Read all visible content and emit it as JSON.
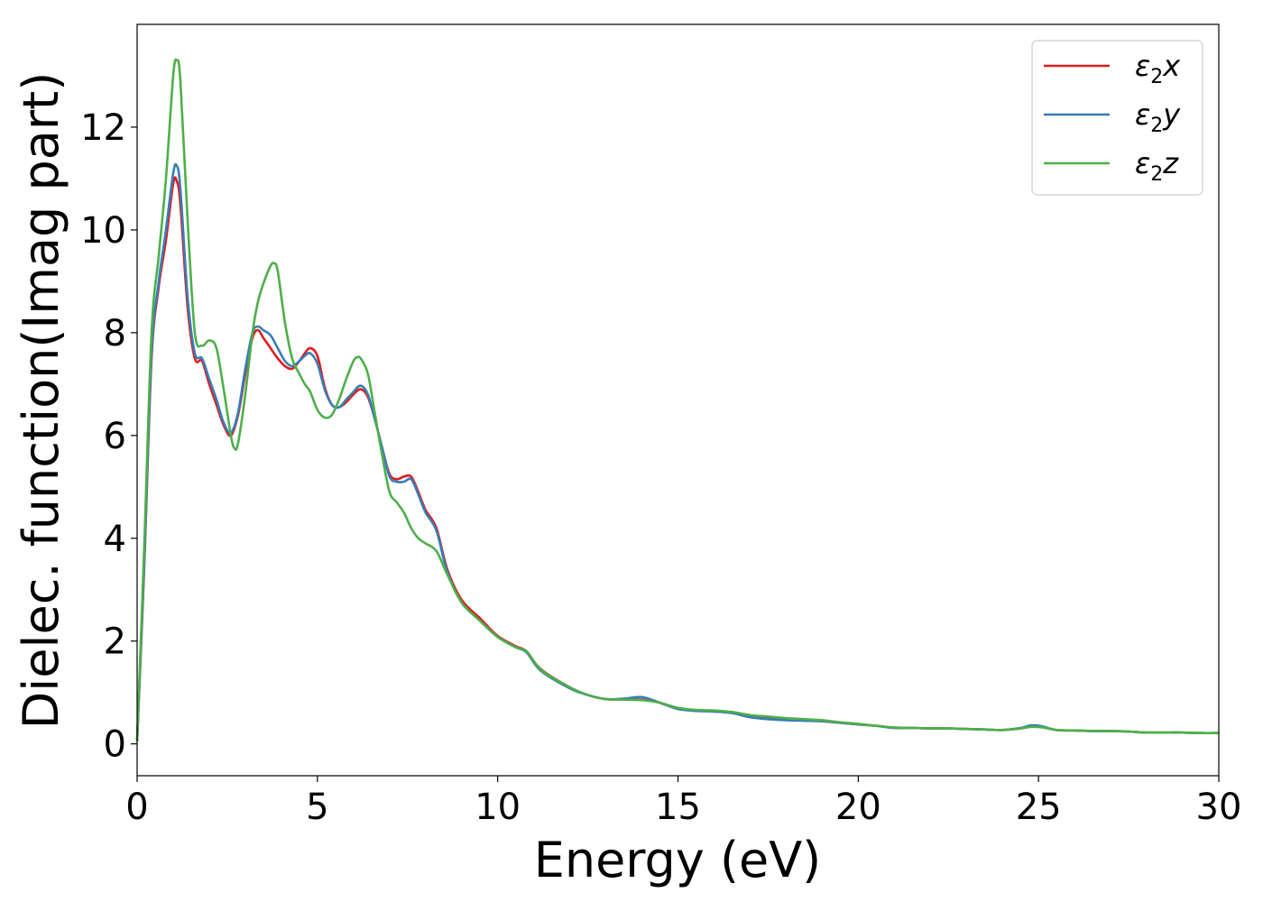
{
  "chart_data": {
    "type": "line",
    "title": "",
    "xlabel": "Energy (eV)",
    "ylabel": "Dielec. function(Imag part)",
    "xlim": [
      0,
      30
    ],
    "ylim": [
      -0.62,
      14.0
    ],
    "xticks": [
      0,
      5,
      10,
      15,
      20,
      25,
      30
    ],
    "yticks": [
      0,
      2,
      4,
      6,
      8,
      10,
      12
    ],
    "grid": false,
    "legend_position": "top-right",
    "series": [
      {
        "name": "ε2x",
        "name_base": "ε",
        "name_sub": "2",
        "name_suffix": "x",
        "color": "#e41a1c",
        "x": [
          0,
          0.2,
          0.4,
          0.6,
          0.8,
          1.0,
          1.1,
          1.2,
          1.4,
          1.6,
          1.8,
          2.0,
          2.2,
          2.4,
          2.6,
          2.8,
          3.0,
          3.2,
          3.35,
          3.5,
          3.7,
          3.9,
          4.1,
          4.3,
          4.5,
          4.65,
          4.8,
          5.0,
          5.2,
          5.4,
          5.6,
          5.8,
          6.0,
          6.2,
          6.4,
          6.6,
          6.8,
          7.0,
          7.2,
          7.4,
          7.6,
          7.8,
          8.0,
          8.3,
          8.6,
          9.0,
          9.5,
          10.0,
          10.5,
          10.8,
          11.2,
          12.0,
          12.5,
          13.0,
          13.5,
          14.0,
          14.5,
          15.0,
          15.5,
          16.0,
          16.5,
          17.0,
          17.5,
          18.0,
          18.5,
          19.0,
          19.5,
          20.0,
          20.5,
          21.0,
          21.5,
          22.0,
          22.5,
          23.0,
          23.5,
          24.0,
          24.5,
          24.8,
          25.1,
          25.5,
          26.0,
          26.5,
          27.0,
          27.5,
          28.0,
          28.5,
          29.0,
          29.5,
          30.0
        ],
        "y": [
          0.05,
          3.5,
          7.5,
          8.9,
          9.8,
          10.9,
          10.95,
          10.5,
          8.5,
          7.5,
          7.45,
          7.0,
          6.6,
          6.2,
          6.0,
          6.4,
          7.2,
          7.9,
          8.05,
          7.9,
          7.7,
          7.5,
          7.35,
          7.3,
          7.45,
          7.6,
          7.7,
          7.55,
          6.95,
          6.6,
          6.55,
          6.65,
          6.8,
          6.9,
          6.75,
          6.3,
          5.75,
          5.25,
          5.15,
          5.2,
          5.2,
          4.9,
          4.55,
          4.2,
          3.4,
          2.8,
          2.45,
          2.1,
          1.9,
          1.8,
          1.45,
          1.1,
          0.95,
          0.87,
          0.87,
          0.9,
          0.8,
          0.68,
          0.65,
          0.63,
          0.6,
          0.52,
          0.5,
          0.47,
          0.46,
          0.44,
          0.41,
          0.38,
          0.35,
          0.31,
          0.31,
          0.3,
          0.3,
          0.29,
          0.28,
          0.27,
          0.3,
          0.34,
          0.33,
          0.27,
          0.26,
          0.25,
          0.25,
          0.24,
          0.22,
          0.22,
          0.22,
          0.21,
          0.21
        ]
      },
      {
        "name": "ε2y",
        "name_base": "ε",
        "name_sub": "2",
        "name_suffix": "y",
        "color": "#377eb8",
        "x": [
          0,
          0.2,
          0.4,
          0.6,
          0.8,
          1.0,
          1.1,
          1.2,
          1.4,
          1.6,
          1.8,
          2.0,
          2.2,
          2.4,
          2.6,
          2.8,
          3.0,
          3.2,
          3.35,
          3.5,
          3.7,
          3.9,
          4.1,
          4.3,
          4.5,
          4.65,
          4.8,
          5.0,
          5.2,
          5.4,
          5.6,
          5.8,
          6.0,
          6.2,
          6.4,
          6.6,
          6.8,
          7.0,
          7.2,
          7.4,
          7.6,
          7.8,
          8.0,
          8.3,
          8.6,
          9.0,
          9.5,
          10.0,
          10.5,
          10.8,
          11.2,
          12.0,
          12.5,
          13.0,
          13.5,
          14.0,
          14.5,
          15.0,
          15.5,
          16.0,
          16.5,
          17.0,
          17.5,
          18.0,
          18.5,
          19.0,
          19.5,
          20.0,
          20.5,
          21.0,
          21.5,
          22.0,
          22.5,
          23.0,
          23.5,
          24.0,
          24.5,
          24.8,
          25.1,
          25.5,
          26.0,
          26.5,
          27.0,
          27.5,
          28.0,
          28.5,
          29.0,
          29.5,
          30.0
        ],
        "y": [
          0.05,
          3.6,
          7.6,
          9.0,
          10.0,
          11.1,
          11.25,
          10.8,
          8.7,
          7.6,
          7.5,
          7.1,
          6.7,
          6.25,
          6.05,
          6.45,
          7.3,
          8.0,
          8.12,
          8.05,
          7.95,
          7.7,
          7.45,
          7.35,
          7.45,
          7.55,
          7.6,
          7.4,
          6.9,
          6.6,
          6.55,
          6.7,
          6.85,
          6.97,
          6.8,
          6.3,
          5.75,
          5.2,
          5.1,
          5.1,
          5.15,
          4.85,
          4.5,
          4.15,
          3.35,
          2.75,
          2.4,
          2.08,
          1.88,
          1.78,
          1.42,
          1.08,
          0.95,
          0.87,
          0.88,
          0.91,
          0.8,
          0.68,
          0.64,
          0.63,
          0.6,
          0.52,
          0.48,
          0.46,
          0.45,
          0.44,
          0.41,
          0.38,
          0.35,
          0.31,
          0.31,
          0.3,
          0.3,
          0.29,
          0.28,
          0.27,
          0.31,
          0.36,
          0.34,
          0.27,
          0.26,
          0.25,
          0.25,
          0.24,
          0.22,
          0.22,
          0.22,
          0.21,
          0.21
        ]
      },
      {
        "name": "ε2z",
        "name_base": "ε",
        "name_sub": "2",
        "name_suffix": "z",
        "color": "#4daf4a",
        "x": [
          0,
          0.2,
          0.4,
          0.6,
          0.8,
          1.0,
          1.1,
          1.2,
          1.4,
          1.6,
          1.8,
          2.0,
          2.2,
          2.4,
          2.6,
          2.7,
          2.8,
          3.0,
          3.2,
          3.35,
          3.5,
          3.7,
          3.8,
          3.9,
          4.1,
          4.3,
          4.5,
          4.65,
          4.8,
          5.0,
          5.2,
          5.4,
          5.6,
          5.8,
          6.0,
          6.1,
          6.2,
          6.4,
          6.6,
          6.8,
          7.0,
          7.2,
          7.4,
          7.6,
          7.8,
          8.0,
          8.3,
          8.6,
          9.0,
          9.5,
          10.0,
          10.5,
          10.8,
          11.2,
          12.0,
          12.5,
          13.0,
          13.5,
          14.0,
          14.5,
          15.0,
          15.5,
          16.0,
          16.5,
          17.0,
          17.5,
          18.0,
          18.5,
          19.0,
          19.5,
          20.0,
          20.5,
          21.0,
          21.5,
          22.0,
          22.5,
          23.0,
          23.5,
          24.0,
          24.5,
          24.8,
          25.1,
          25.5,
          26.0,
          26.5,
          27.0,
          27.5,
          28.0,
          28.5,
          29.0,
          29.5,
          30.0
        ],
        "y": [
          0.05,
          3.9,
          8.0,
          9.5,
          11.0,
          13.0,
          13.3,
          12.9,
          10.2,
          8.0,
          7.75,
          7.85,
          7.7,
          6.9,
          6.0,
          5.75,
          5.85,
          6.8,
          8.0,
          8.6,
          8.95,
          9.3,
          9.35,
          9.2,
          8.2,
          7.5,
          7.2,
          7.0,
          6.85,
          6.5,
          6.35,
          6.4,
          6.7,
          7.1,
          7.45,
          7.52,
          7.5,
          7.2,
          6.4,
          5.6,
          4.9,
          4.7,
          4.5,
          4.2,
          4.0,
          3.9,
          3.75,
          3.3,
          2.75,
          2.4,
          2.08,
          1.88,
          1.8,
          1.44,
          1.1,
          0.95,
          0.87,
          0.86,
          0.85,
          0.8,
          0.7,
          0.66,
          0.65,
          0.62,
          0.56,
          0.53,
          0.5,
          0.48,
          0.46,
          0.42,
          0.39,
          0.35,
          0.32,
          0.31,
          0.3,
          0.3,
          0.29,
          0.28,
          0.27,
          0.3,
          0.33,
          0.32,
          0.27,
          0.26,
          0.25,
          0.25,
          0.24,
          0.22,
          0.22,
          0.22,
          0.21,
          0.21
        ]
      }
    ]
  }
}
